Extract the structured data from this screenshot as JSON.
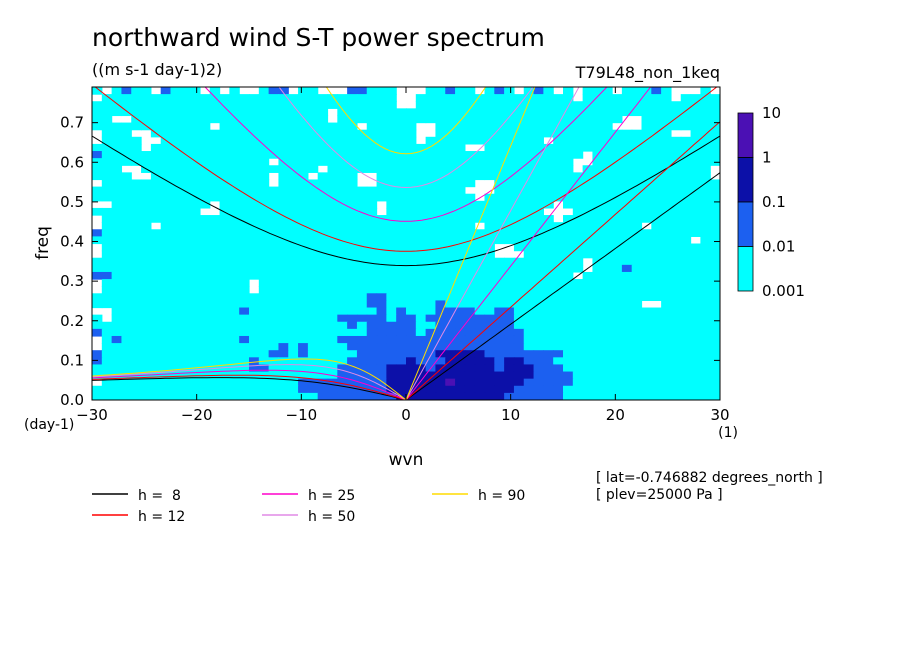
{
  "chart_data": {
    "type": "heatmap",
    "title": "northward wind S-T power spectrum",
    "subtitle": "((m s-1 day-1)2)",
    "run_label": "T79L48_non_1keq",
    "xlabel": "wvn",
    "x_unit": "(1)",
    "ylabel": "freq",
    "y_unit": "(day-1)",
    "xlim": [
      -30,
      30
    ],
    "ylim": [
      0,
      0.79
    ],
    "x_ticks": [
      -30,
      -20,
      -10,
      0,
      10,
      20,
      30
    ],
    "y_ticks": [
      0.0,
      0.1,
      0.2,
      0.3,
      0.4,
      0.5,
      0.6,
      0.7
    ],
    "y_tick_labels": [
      "0.0",
      "0.1",
      "0.2",
      "0.3",
      "0.4",
      "0.5",
      "0.6",
      "0.7"
    ],
    "colorbar": {
      "levels": [
        "10",
        "1",
        "0.1",
        "0.01",
        "0.001"
      ],
      "level_values": [
        10,
        1,
        0.1,
        0.01,
        0.001
      ],
      "colors": [
        "#4b10b4",
        "#0c10a8",
        "#1c60f0",
        "#00ffff"
      ]
    },
    "dispersion_curves": [
      {
        "label": "h =  8",
        "h": 8,
        "color": "#000000"
      },
      {
        "label": "h = 12",
        "h": 12,
        "color": "#ff0000"
      },
      {
        "label": "h = 25",
        "h": 25,
        "color": "#ff00cc"
      },
      {
        "label": "h = 50",
        "h": 50,
        "color": "#e08ae6"
      },
      {
        "label": "h = 90",
        "h": 90,
        "color": "#ffdc00"
      }
    ],
    "annotations": [
      "[ lat=-0.746882 degrees_north ]",
      "[ plev=25000 Pa ]"
    ]
  }
}
